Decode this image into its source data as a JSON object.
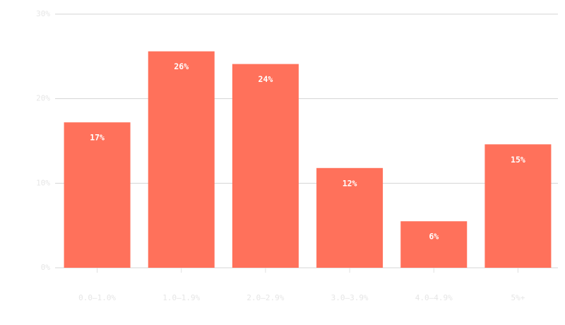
{
  "chart_data": {
    "type": "bar",
    "categories": [
      "0.0–1.0%",
      "1.0–1.9%",
      "2.0–2.9%",
      "3.0–3.9%",
      "4.0–4.9%",
      "5%+"
    ],
    "values": [
      17.2,
      25.6,
      24.1,
      11.8,
      5.5,
      14.6
    ],
    "value_labels": [
      "17%",
      "26%",
      "24%",
      "12%",
      "6%",
      "15%"
    ],
    "color": "#ff715b",
    "ylim": [
      0,
      30
    ],
    "yticks": [
      {
        "value": 0,
        "label": "0%"
      },
      {
        "value": 10,
        "label": "10%"
      },
      {
        "value": 20,
        "label": "20%"
      },
      {
        "value": 30,
        "label": "30%"
      }
    ],
    "grid": true
  }
}
